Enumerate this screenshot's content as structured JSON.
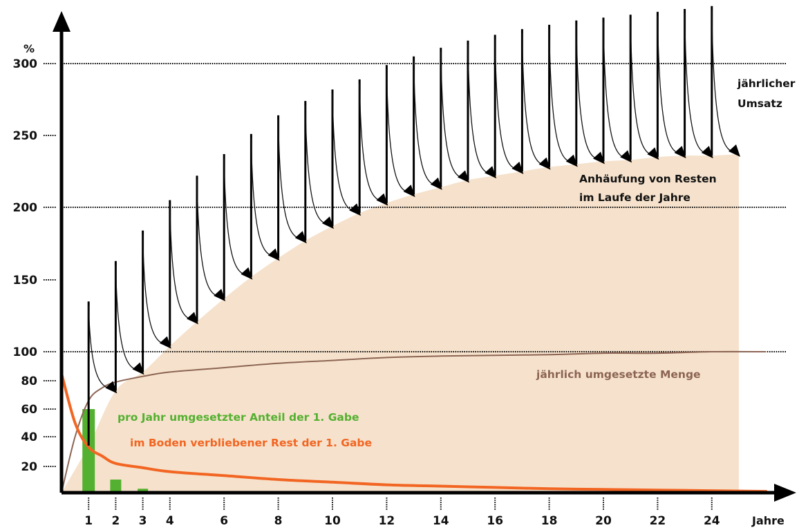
{
  "chart_data": {
    "type": "area",
    "y_unit": "%",
    "x_unit": "Jahre",
    "ylim": [
      0,
      300
    ],
    "xlim": [
      0,
      27
    ],
    "y_ticks": [
      20,
      40,
      60,
      80,
      100,
      150,
      200,
      250,
      300
    ],
    "y_tick_labels": [
      "20",
      "40",
      "60",
      "80",
      "100",
      "150",
      "200",
      "250",
      "300"
    ],
    "x_ticks": [
      1,
      2,
      3,
      4,
      6,
      8,
      10,
      12,
      14,
      16,
      18,
      20,
      22,
      24
    ],
    "x_tick_labels": [
      "1",
      "2",
      "3",
      "4",
      "6",
      "8",
      "10",
      "12",
      "14",
      "16",
      "18",
      "20",
      "22",
      "24"
    ],
    "gridlines_dotted_at": [
      100,
      200,
      300
    ],
    "colors": {
      "area": "#f6e2cc",
      "bars": "#54b030",
      "rest_curve": "#f26522",
      "turnover_curve": "#8c6454",
      "axis": "#000000",
      "green_text": "#54b030",
      "orange_text": "#f26522",
      "brown_text": "#8c6454"
    },
    "series": [
      {
        "name": "Anhäufung von Resten im Laufe der Jahre",
        "kind": "area",
        "x": [
          0,
          1,
          2,
          3,
          4,
          5,
          6,
          7,
          8,
          9,
          10,
          11,
          12,
          13,
          14,
          15,
          16,
          17,
          18,
          19,
          20,
          21,
          22,
          23,
          24,
          25
        ],
        "values": [
          0,
          34,
          73,
          86,
          104,
          121,
          137,
          152,
          165,
          177,
          187,
          196,
          203,
          209,
          214,
          219,
          222,
          225,
          228,
          230,
          232,
          233,
          235,
          236,
          236,
          237
        ]
      },
      {
        "name": "jährlich umgesetzte Menge",
        "kind": "line",
        "x": [
          0,
          0.5,
          1,
          1.5,
          2,
          3,
          4,
          6,
          8,
          10,
          12,
          14,
          16,
          18,
          20,
          22,
          24,
          26
        ],
        "values": [
          0,
          40,
          66,
          75,
          79,
          83,
          86,
          89,
          92,
          94,
          96,
          97,
          97.5,
          98,
          99,
          99,
          100,
          100
        ]
      },
      {
        "name": "im Boden verbliebener Rest der 1. Gabe",
        "kind": "line",
        "x": [
          0,
          0.5,
          1,
          1.5,
          2,
          3,
          4,
          6,
          8,
          10,
          12,
          14,
          16,
          18,
          20,
          22,
          24,
          26
        ],
        "values": [
          85,
          50,
          33,
          27,
          22,
          19,
          16,
          13,
          10,
          8,
          6,
          5,
          4,
          3,
          2.5,
          2,
          1.5,
          1
        ]
      },
      {
        "name": "pro Jahr umgesetzter Anteil der 1. Gabe",
        "kind": "bar",
        "x": [
          1,
          2,
          3,
          4
        ],
        "values": [
          60,
          10,
          3,
          1
        ]
      },
      {
        "name": "jährlicher Umsatz",
        "kind": "arrows",
        "x": [
          1,
          2,
          3,
          4,
          5,
          6,
          7,
          8,
          9,
          10,
          11,
          12,
          13,
          14,
          15,
          16,
          17,
          18,
          19,
          20,
          21,
          22,
          23,
          24
        ],
        "peaks": [
          135,
          163,
          184,
          205,
          222,
          237,
          251,
          264,
          274,
          282,
          289,
          299,
          305,
          311,
          316,
          320,
          324,
          327,
          330,
          332,
          334,
          336,
          338,
          340
        ],
        "bases": [
          34,
          73,
          86,
          104,
          121,
          137,
          152,
          165,
          177,
          187,
          196,
          203,
          209,
          214,
          219,
          222,
          225,
          228,
          230,
          232,
          233,
          235,
          236,
          236
        ]
      }
    ],
    "annotations": {
      "annual_turnover": [
        "jährlicher",
        "Umsatz"
      ],
      "accumulation": [
        "Anhäufung von Resten",
        "im Laufe der Jahre"
      ],
      "annual_amount": "jährlich umgesetzte Menge",
      "share_first_dose": "pro Jahr umgesetzter Anteil der 1. Gabe",
      "remainder_first_dose": "im Boden verbliebener Rest der 1. Gabe"
    }
  }
}
